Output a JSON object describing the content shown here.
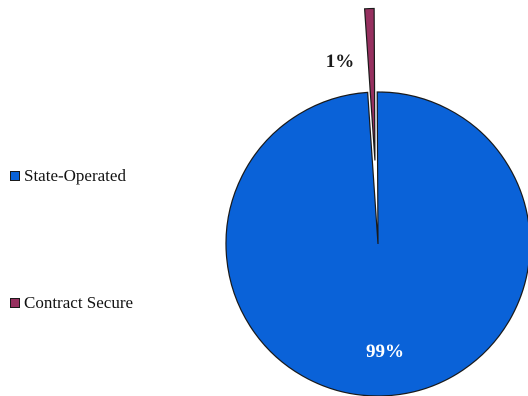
{
  "chart_data": {
    "type": "pie",
    "categories": [
      "State-Operated",
      "Contract Secure"
    ],
    "values": [
      99,
      1
    ],
    "data_labels": [
      "99%",
      "1%"
    ],
    "colors": [
      "#0a62d8",
      "#96305f"
    ],
    "legend_position": "left",
    "title": ""
  }
}
